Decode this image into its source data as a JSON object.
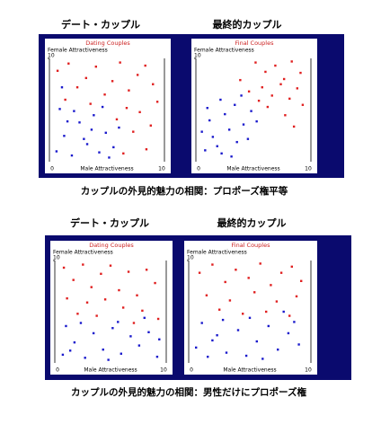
{
  "figures": [
    {
      "headers": [
        "デート・カップル",
        "最終的カップル"
      ],
      "caption": "カップルの外見的魅力の相関：プロポーズ権平等"
    },
    {
      "headers": [
        "デート・カップル",
        "最終的カップル"
      ],
      "caption": "カップルの外見的魅力の相関：男性だけにプロポーズ権"
    }
  ],
  "chart_data": [
    {
      "type": "scatter",
      "title": "Dating Couples",
      "xlabel": "Male Attractiveness",
      "ylabel": "Female Attractiveness",
      "xlim": [
        0,
        10
      ],
      "ylim": [
        0,
        10
      ],
      "xticks": [
        0,
        10
      ],
      "yticks": [
        10
      ],
      "series": [
        {
          "color": "#e02020",
          "x": [
            0.5,
            1.5,
            2.3,
            3.1,
            4.0,
            4.8,
            5.5,
            6.2,
            7.0,
            7.8,
            8.5,
            9.2,
            9.6,
            8.0,
            6.8,
            5.9,
            3.5,
            1.2,
            7.4,
            9.0,
            8.6,
            6.5
          ],
          "y": [
            8.8,
            9.5,
            7.2,
            8.1,
            9.2,
            6.5,
            7.8,
            9.6,
            6.9,
            8.4,
            9.3,
            7.5,
            5.8,
            4.8,
            5.2,
            4.1,
            5.6,
            6.0,
            2.9,
            3.5,
            1.2,
            0.8
          ]
        },
        {
          "color": "#1a1acc",
          "x": [
            0.4,
            1.1,
            1.8,
            2.5,
            3.2,
            3.8,
            4.3,
            4.9,
            5.6,
            0.7,
            2.0,
            6.1,
            1.4,
            2.9,
            4.6,
            5.2,
            0.9,
            3.6
          ],
          "y": [
            1.0,
            2.5,
            0.6,
            3.8,
            1.7,
            4.5,
            0.9,
            2.8,
            1.4,
            5.1,
            4.9,
            3.3,
            3.9,
            2.2,
            5.3,
            0.4,
            7.2,
            3.1
          ]
        }
      ]
    },
    {
      "type": "scatter",
      "title": "Final Couples",
      "xlabel": "Male Attractiveness",
      "ylabel": "Female Attractiveness",
      "xlim": [
        0,
        10
      ],
      "ylim": [
        0,
        10
      ],
      "xticks": [
        0,
        10
      ],
      "yticks": [
        10
      ],
      "series": [
        {
          "color": "#e02020",
          "x": [
            5.2,
            6.1,
            7.0,
            7.8,
            8.5,
            9.3,
            5.8,
            6.7,
            7.5,
            8.3,
            9.0,
            4.6,
            6.3,
            7.9,
            9.5,
            8.7,
            5.5,
            3.8
          ],
          "y": [
            9.6,
            8.7,
            9.3,
            8.0,
            9.7,
            8.6,
            7.2,
            6.4,
            7.5,
            6.1,
            7.1,
            6.8,
            5.3,
            4.5,
            5.5,
            3.4,
            5.9,
            7.9
          ]
        },
        {
          "color": "#1a1acc",
          "x": [
            0.6,
            1.3,
            2.1,
            2.8,
            3.5,
            1.0,
            2.4,
            3.3,
            4.1,
            4.8,
            1.7,
            0.3,
            3.0,
            4.5,
            5.3,
            2.0,
            0.8,
            3.9
          ],
          "y": [
            1.1,
            2.4,
            0.8,
            3.1,
            1.9,
            4.0,
            4.6,
            5.5,
            3.6,
            4.9,
            1.5,
            2.9,
            0.5,
            2.2,
            3.9,
            6.0,
            5.2,
            6.4
          ]
        }
      ]
    },
    {
      "type": "scatter",
      "title": "Dating Couples",
      "xlabel": "Male Attractiveness",
      "ylabel": "Female Attractiveness",
      "xlim": [
        0,
        10
      ],
      "ylim": [
        0,
        10
      ],
      "xticks": [
        0,
        10
      ],
      "yticks": [
        10
      ],
      "series": [
        {
          "color": "#e02020",
          "x": [
            0.6,
            1.5,
            2.4,
            3.2,
            4.1,
            5.0,
            5.8,
            6.7,
            7.5,
            8.4,
            9.2,
            0.9,
            2.8,
            4.5,
            6.2,
            8.0,
            9.5,
            1.9,
            3.7,
            7.2
          ],
          "y": [
            9.3,
            8.1,
            9.6,
            7.4,
            8.7,
            9.5,
            7.1,
            8.9,
            6.6,
            9.1,
            7.8,
            6.3,
            5.9,
            6.2,
            5.4,
            5.1,
            4.3,
            4.8,
            4.6,
            3.9
          ]
        },
        {
          "color": "#1a1acc",
          "x": [
            0.5,
            1.6,
            2.6,
            3.4,
            4.3,
            5.2,
            6.0,
            6.9,
            7.7,
            8.6,
            9.4,
            0.8,
            2.2,
            4.8,
            5.7,
            8.2,
            9.6,
            1.2
          ],
          "y": [
            0.8,
            2.0,
            0.5,
            2.9,
            1.3,
            3.4,
            0.9,
            2.6,
            1.7,
            3.0,
            0.6,
            3.6,
            3.9,
            0.3,
            4.0,
            4.4,
            2.3,
            1.2
          ]
        }
      ]
    },
    {
      "type": "scatter",
      "title": "Final Couples",
      "xlabel": "Male Attractiveness",
      "ylabel": "Female Attractiveness",
      "xlim": [
        0,
        10
      ],
      "ylim": [
        0,
        10
      ],
      "xticks": [
        0,
        10
      ],
      "yticks": [
        10
      ],
      "series": [
        {
          "color": "#e02020",
          "x": [
            0.7,
            1.8,
            2.9,
            3.8,
            4.9,
            5.9,
            6.8,
            7.7,
            8.6,
            9.4,
            1.3,
            3.3,
            5.4,
            7.3,
            9.0,
            2.4,
            4.4,
            6.4,
            8.4
          ],
          "y": [
            8.8,
            9.6,
            7.9,
            9.1,
            8.3,
            9.7,
            7.6,
            8.8,
            9.4,
            8.0,
            6.6,
            6.1,
            6.9,
            6.0,
            6.5,
            5.2,
            4.8,
            5.0,
            4.6
          ]
        },
        {
          "color": "#1a1acc",
          "x": [
            0.4,
            1.4,
            2.2,
            3.0,
            4.0,
            4.7,
            5.6,
            6.6,
            7.4,
            8.3,
            9.2,
            0.9,
            2.7,
            5.0,
            6.1,
            8.8,
            1.8,
            7.9
          ],
          "y": [
            1.5,
            0.6,
            2.7,
            1.0,
            3.2,
            0.7,
            2.1,
            3.6,
            1.3,
            2.9,
            1.8,
            3.9,
            4.2,
            4.4,
            0.4,
            4.0,
            2.2,
            5.0
          ]
        }
      ]
    }
  ]
}
